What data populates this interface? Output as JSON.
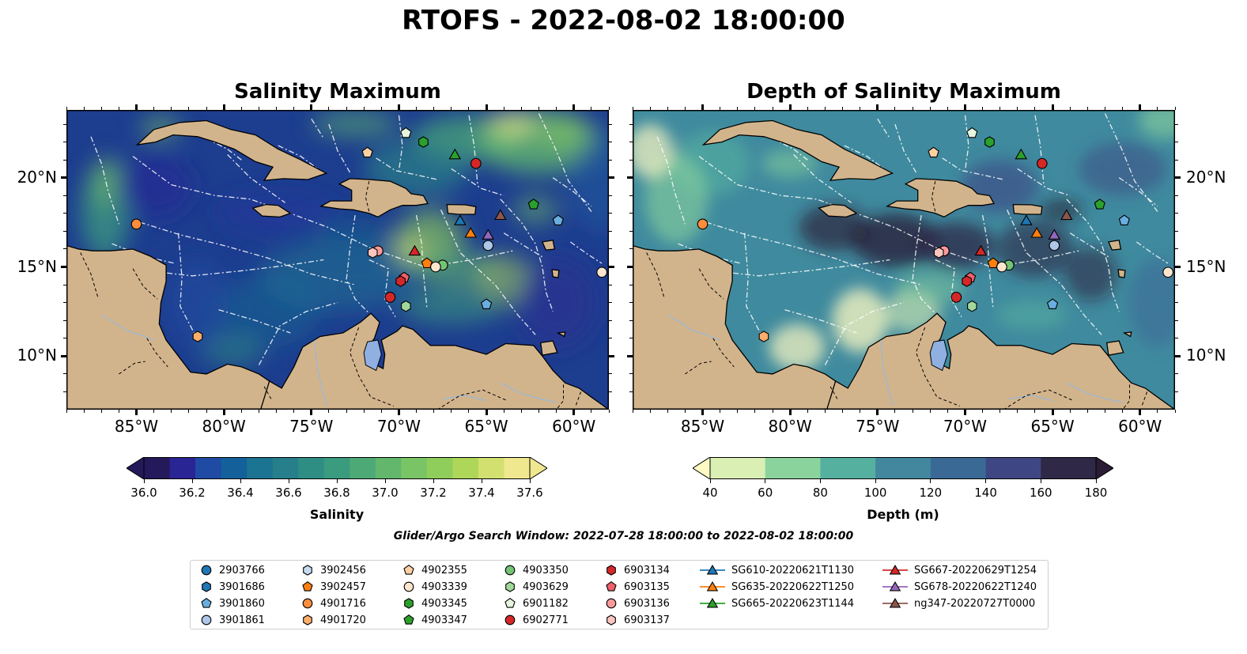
{
  "suptitle": "RTOFS - 2022-08-02 18:00:00",
  "panels": [
    {
      "title": "Salinity Maximum"
    },
    {
      "title": "Depth of Salinity Maximum"
    }
  ],
  "axes": {
    "lon_ticks": [
      "85°W",
      "80°W",
      "75°W",
      "70°W",
      "65°W",
      "60°W"
    ],
    "lat_ticks": [
      "20°N",
      "15°N",
      "10°N"
    ]
  },
  "colorbars": [
    {
      "label": "Salinity",
      "ticks": [
        "36.0",
        "36.2",
        "36.4",
        "36.6",
        "36.8",
        "37.0",
        "37.2",
        "37.4",
        "37.6"
      ],
      "colors": [
        "#24195a",
        "#2a2595",
        "#1f4ba5",
        "#14609b",
        "#1b7491",
        "#267f8b",
        "#2f8e84",
        "#3b9b7e",
        "#4daa77",
        "#62b76d",
        "#79c565",
        "#8fce5b",
        "#aed659",
        "#d2e070",
        "#efe88e"
      ]
    },
    {
      "label": "Depth (m)",
      "ticks": [
        "40",
        "60",
        "80",
        "100",
        "120",
        "140",
        "160",
        "180"
      ],
      "colors": [
        "#d9efb4",
        "#8bd39c",
        "#55b0a0",
        "#42879d",
        "#3a6996",
        "#3e4683",
        "#2f2846"
      ],
      "under_color": "#fefac2",
      "over_color": "#2a1c34"
    }
  ],
  "window_note": "Glider/Argo Search Window: 2022-07-28 18:00:00 to 2022-08-02 18:00:00",
  "colors": {
    "land": "#d2b48c",
    "lake": "#8fb0e0",
    "ocean_sal_base": "#1d3d8f",
    "ocean_depth_base": "#3f8a9e"
  },
  "legend": {
    "columns": [
      [
        {
          "label": "2903766",
          "marker": "circle",
          "color": "#1f77b4"
        },
        {
          "label": "3901686",
          "marker": "hexagon",
          "color": "#1f77b4"
        },
        {
          "label": "3901860",
          "marker": "pentagon",
          "color": "#6aaee0"
        },
        {
          "label": "3901861",
          "marker": "circle",
          "color": "#aec7e8"
        }
      ],
      [
        {
          "label": "3902456",
          "marker": "hexagon",
          "color": "#c6dbef"
        },
        {
          "label": "3902457",
          "marker": "pentagon",
          "color": "#ff7f0e"
        },
        {
          "label": "4901716",
          "marker": "circle",
          "color": "#fd8d3c"
        },
        {
          "label": "4901720",
          "marker": "hexagon",
          "color": "#fdae6b"
        }
      ],
      [
        {
          "label": "4902355",
          "marker": "pentagon",
          "color": "#fdd0a2"
        },
        {
          "label": "4903339",
          "marker": "circle",
          "color": "#fee6ce"
        },
        {
          "label": "4903345",
          "marker": "hexagon",
          "color": "#2ca02c"
        },
        {
          "label": "4903347",
          "marker": "pentagon",
          "color": "#2ca02c"
        }
      ],
      [
        {
          "label": "4903350",
          "marker": "circle",
          "color": "#74c476"
        },
        {
          "label": "4903629",
          "marker": "hexagon",
          "color": "#a1d99b"
        },
        {
          "label": "6901182",
          "marker": "pentagon",
          "color": "#e5f5e0"
        },
        {
          "label": "6902771",
          "marker": "circle",
          "color": "#d62728"
        }
      ],
      [
        {
          "label": "6903134",
          "marker": "hexagon",
          "color": "#d62728"
        },
        {
          "label": "6903135",
          "marker": "pentagon",
          "color": "#f0606a"
        },
        {
          "label": "6903136",
          "marker": "circle",
          "color": "#fc9a9a"
        },
        {
          "label": "6903137",
          "marker": "hexagon",
          "color": "#fcc5c0"
        }
      ],
      [
        {
          "label": "SG610-20220621T1130",
          "marker": "triangle",
          "color": "#1f77b4"
        },
        {
          "label": "SG635-20220622T1250",
          "marker": "triangle",
          "color": "#ff7f0e"
        },
        {
          "label": "SG665-20220623T1144",
          "marker": "triangle",
          "color": "#2ca02c"
        }
      ],
      [
        {
          "label": "SG667-20220629T1254",
          "marker": "triangle",
          "color": "#d62728"
        },
        {
          "label": "SG678-20220622T1240",
          "marker": "triangle",
          "color": "#9467bd"
        },
        {
          "label": "ng347-20220727T0000",
          "marker": "triangle",
          "color": "#8c564b"
        }
      ]
    ]
  },
  "markers": [
    {
      "lon": -85.0,
      "lat": 17.4,
      "marker": "circle",
      "color": "#fd8d3c"
    },
    {
      "lon": -81.5,
      "lat": 11.1,
      "marker": "hexagon",
      "color": "#fdae6b"
    },
    {
      "lon": -71.8,
      "lat": 21.4,
      "marker": "pentagon",
      "color": "#fdd0a2"
    },
    {
      "lon": -69.6,
      "lat": 22.5,
      "marker": "pentagon",
      "color": "#e5f5e0"
    },
    {
      "lon": -68.6,
      "lat": 22.0,
      "marker": "hexagon",
      "color": "#2ca02c"
    },
    {
      "lon": -66.8,
      "lat": 21.3,
      "marker": "triangle",
      "color": "#2ca02c"
    },
    {
      "lon": -65.6,
      "lat": 20.8,
      "marker": "circle",
      "color": "#d62728"
    },
    {
      "lon": -62.3,
      "lat": 18.5,
      "marker": "pentagon",
      "color": "#2ca02c"
    },
    {
      "lon": -66.5,
      "lat": 17.6,
      "marker": "triangle",
      "color": "#1f77b4"
    },
    {
      "lon": -64.2,
      "lat": 17.9,
      "marker": "triangle",
      "color": "#8c564b"
    },
    {
      "lon": -60.9,
      "lat": 17.6,
      "marker": "pentagon",
      "color": "#6aaee0"
    },
    {
      "lon": -65.9,
      "lat": 16.9,
      "marker": "triangle",
      "color": "#ff7f0e"
    },
    {
      "lon": -64.9,
      "lat": 16.8,
      "marker": "triangle",
      "color": "#9467bd"
    },
    {
      "lon": -64.9,
      "lat": 16.2,
      "marker": "circle",
      "color": "#aec7e8"
    },
    {
      "lon": -69.1,
      "lat": 15.9,
      "marker": "triangle",
      "color": "#d62728"
    },
    {
      "lon": -71.2,
      "lat": 15.9,
      "marker": "circle",
      "color": "#fc9a9a"
    },
    {
      "lon": -71.5,
      "lat": 15.8,
      "marker": "hexagon",
      "color": "#fcc5c0"
    },
    {
      "lon": -68.4,
      "lat": 15.2,
      "marker": "pentagon",
      "color": "#ff7f0e"
    },
    {
      "lon": -67.5,
      "lat": 15.1,
      "marker": "circle",
      "color": "#74c476"
    },
    {
      "lon": -67.9,
      "lat": 15.0,
      "marker": "circle",
      "color": "#fee6ce"
    },
    {
      "lon": -69.7,
      "lat": 14.4,
      "marker": "pentagon",
      "color": "#f0606a"
    },
    {
      "lon": -69.9,
      "lat": 14.2,
      "marker": "hexagon",
      "color": "#d62728"
    },
    {
      "lon": -70.5,
      "lat": 13.3,
      "marker": "circle",
      "color": "#d62728"
    },
    {
      "lon": -69.6,
      "lat": 12.8,
      "marker": "hexagon",
      "color": "#a1d99b"
    },
    {
      "lon": -65.0,
      "lat": 12.9,
      "marker": "pentagon",
      "color": "#6aaee0"
    },
    {
      "lon": -58.4,
      "lat": 14.7,
      "marker": "circle",
      "color": "#fee6ce"
    }
  ]
}
